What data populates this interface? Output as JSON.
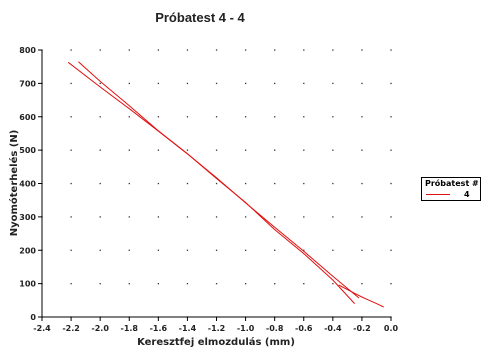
{
  "chart_data": {
    "type": "line",
    "title": "Próbatest 4 - 4",
    "xlabel": "Keresztfej elmozdulás (mm)",
    "ylabel": "Nyomóterhelés (N)",
    "xlim": [
      -2.4,
      0.0
    ],
    "ylim": [
      0,
      800
    ],
    "x_ticks": [
      "-2.4",
      "-2.2",
      "-2.0",
      "-1.8",
      "-1.6",
      "-1.4",
      "-1.2",
      "-1.0",
      "-0.8",
      "-0.6",
      "-0.4",
      "-0.2",
      "0.0"
    ],
    "y_ticks": [
      "0",
      "100",
      "200",
      "300",
      "400",
      "500",
      "600",
      "700",
      "800"
    ],
    "grid": true,
    "legend": {
      "title": "Próbatest #",
      "placement": "right"
    },
    "line_color": "#e01010",
    "series": [
      {
        "name": "4",
        "segments": [
          {
            "x": [
              -2.22,
              -2.0,
              -1.8,
              -1.6,
              -1.4,
              -1.2,
              -1.0,
              -0.8,
              -0.6,
              -0.4,
              -0.22
            ],
            "y": [
              763,
              689,
              624,
              557,
              489,
              417,
              342,
              269,
              197,
              122,
              57
            ]
          },
          {
            "x": [
              -2.15,
              -2.0,
              -1.8,
              -1.6,
              -1.4,
              -1.2,
              -1.0,
              -0.8,
              -0.6,
              -0.4,
              -0.25
            ],
            "y": [
              765,
              706,
              633,
              558,
              489,
              415,
              343,
              262,
              190,
              111,
              40
            ]
          },
          {
            "x": [
              -0.36,
              -0.3,
              -0.25,
              -0.2,
              -0.15,
              -0.1,
              -0.05
            ],
            "y": [
              96,
              82,
              71,
              60,
              50,
              40,
              30
            ]
          }
        ]
      }
    ]
  }
}
